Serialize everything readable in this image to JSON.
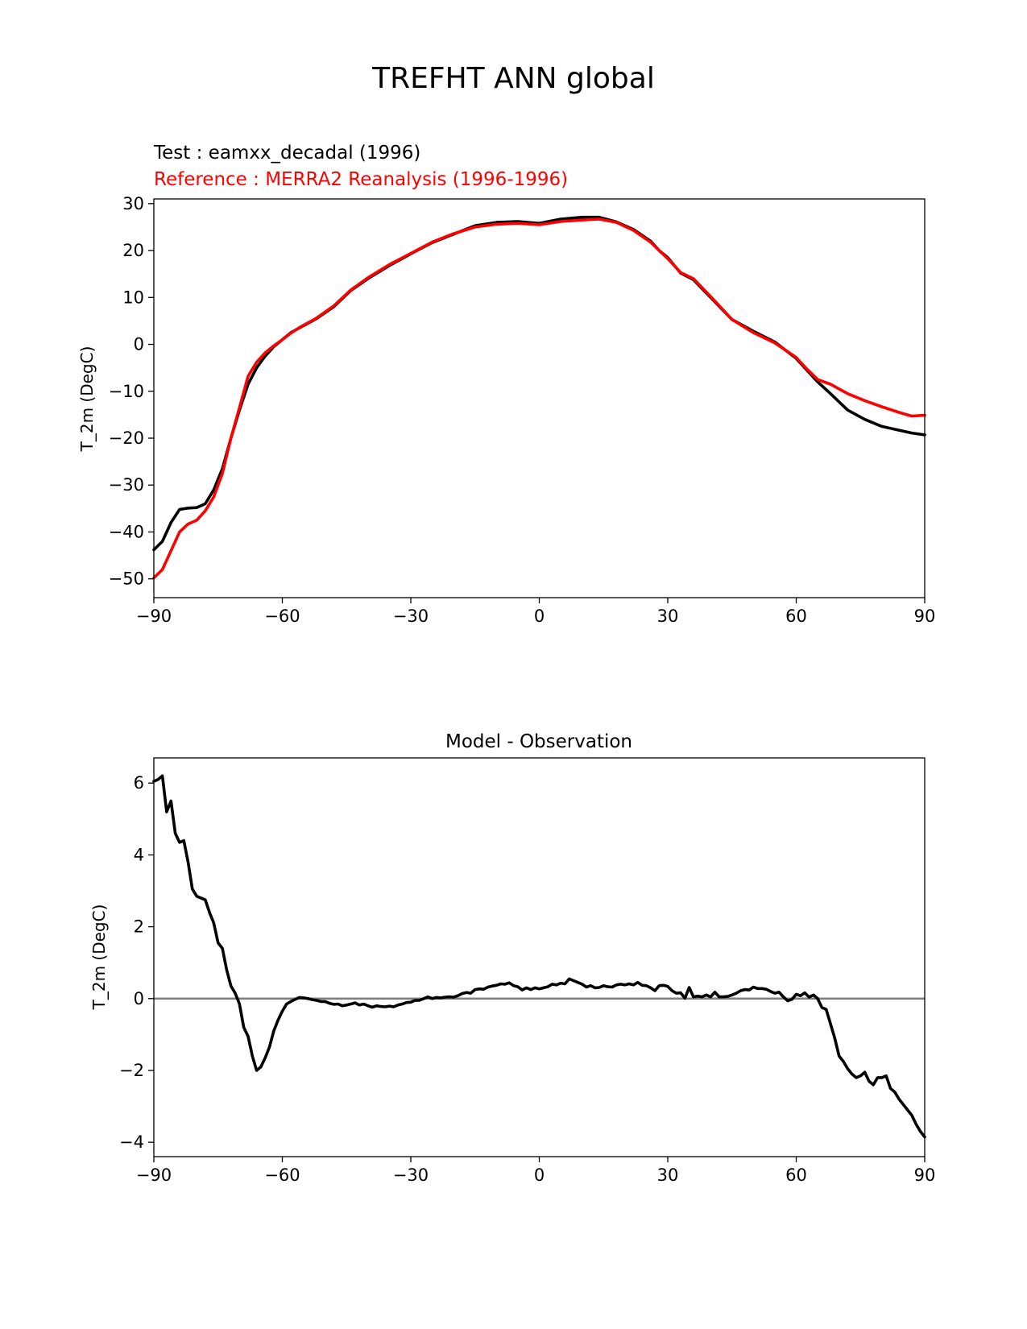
{
  "figure_title": "TREFHT ANN global",
  "chart_data": [
    {
      "type": "line",
      "test_label": "Test : eamxx_decadal (1996)",
      "reference_label": "Reference : MERRA2 Reanalysis (1996-1996)",
      "xlabel": "",
      "ylabel": "T_2m (DegC)",
      "xlim": [
        -90,
        90
      ],
      "ylim": [
        -54,
        31
      ],
      "xticks": [
        -90,
        -60,
        -30,
        0,
        30,
        60,
        90
      ],
      "xtick_labels": [
        "−90",
        "−60",
        "−30",
        "0",
        "30",
        "60",
        "90"
      ],
      "yticks": [
        30,
        20,
        10,
        0,
        -10,
        -20,
        -30,
        -40,
        -50
      ],
      "ytick_labels": [
        "30",
        "20",
        "10",
        "0",
        "−10",
        "−20",
        "−30",
        "−40",
        "−50"
      ],
      "series": [
        {
          "name": "Test",
          "color": "#000000",
          "x": [
            -90,
            -88,
            -86,
            -84,
            -82,
            -80,
            -78,
            -76,
            -74,
            -72,
            -70,
            -68,
            -66,
            -64,
            -62,
            -60,
            -58,
            -56,
            -52,
            -48,
            -44,
            -40,
            -35,
            -30,
            -25,
            -20,
            -15,
            -10,
            -5,
            0,
            5,
            10,
            14,
            18,
            22,
            26,
            28,
            30,
            33,
            36,
            40,
            45,
            50,
            55,
            60,
            62,
            65,
            68,
            72,
            76,
            80,
            84,
            87,
            90
          ],
          "values": [
            -43.8,
            -42,
            -38,
            -35.2,
            -34.9,
            -34.8,
            -34,
            -31,
            -26.5,
            -20,
            -14,
            -8.5,
            -5,
            -2.5,
            -0.5,
            1,
            2.5,
            3.5,
            5.5,
            8,
            11.5,
            14,
            16.8,
            19.3,
            21.7,
            23.5,
            25.3,
            26,
            26.2,
            25.8,
            26.7,
            27.1,
            27.1,
            26.1,
            24.5,
            22,
            20,
            18.5,
            15.2,
            13.8,
            10,
            5.3,
            2.8,
            0.5,
            -3,
            -5,
            -8,
            -10.5,
            -14,
            -16,
            -17.5,
            -18.3,
            -18.9,
            -19.3
          ]
        },
        {
          "name": "Reference",
          "color": "#ff0000",
          "x": [
            -90,
            -88,
            -86,
            -84,
            -82,
            -80,
            -78,
            -76,
            -74,
            -72,
            -70,
            -68,
            -66,
            -64,
            -62,
            -60,
            -58,
            -56,
            -52,
            -48,
            -44,
            -40,
            -35,
            -30,
            -25,
            -20,
            -15,
            -10,
            -5,
            0,
            5,
            10,
            14,
            18,
            22,
            26,
            28,
            30,
            33,
            36,
            40,
            45,
            50,
            55,
            60,
            62,
            65,
            68,
            72,
            76,
            80,
            84,
            87,
            90
          ],
          "values": [
            -49.8,
            -48,
            -44,
            -40,
            -38.3,
            -37.5,
            -35.5,
            -32.5,
            -27.5,
            -20,
            -13.5,
            -6.8,
            -3.8,
            -1.8,
            -0.3,
            1,
            2.4,
            3.6,
            5.6,
            8.2,
            11.6,
            14.2,
            17,
            19.4,
            21.8,
            23.6,
            25,
            25.6,
            25.8,
            25.5,
            26.2,
            26.5,
            26.7,
            26,
            24.3,
            21.8,
            20,
            18.3,
            15.3,
            14,
            10.2,
            5.3,
            2.5,
            0.3,
            -2.8,
            -4.8,
            -7.5,
            -8.5,
            -10.5,
            -12,
            -13.3,
            -14.5,
            -15.3,
            -15.1
          ]
        }
      ]
    },
    {
      "type": "line",
      "title": "Model - Observation",
      "xlabel": "",
      "ylabel": "T_2m (DegC)",
      "xlim": [
        -90,
        90
      ],
      "ylim": [
        -4.4,
        6.7
      ],
      "xticks": [
        -90,
        -60,
        -30,
        0,
        30,
        60,
        90
      ],
      "xtick_labels": [
        "−90",
        "−60",
        "−30",
        "0",
        "30",
        "60",
        "90"
      ],
      "yticks": [
        6,
        4,
        2,
        0,
        -2,
        -4
      ],
      "ytick_labels": [
        "6",
        "4",
        "2",
        "0",
        "−2",
        "−4"
      ],
      "zero_line": 0,
      "series": [
        {
          "name": "Model - Observation",
          "color": "#000000",
          "x": [
            -90,
            -89,
            -88,
            -87,
            -86,
            -85,
            -84,
            -83,
            -82,
            -81,
            -80,
            -79,
            -78,
            -77,
            -76,
            -75,
            -74,
            -73,
            -72,
            -71,
            -70,
            -69,
            -68,
            -67,
            -66,
            -65,
            -64,
            -63,
            -62,
            -61,
            -60,
            -59,
            -58,
            -57,
            -56,
            -55,
            -54,
            -53,
            -52,
            -51,
            -50,
            -49,
            -48,
            -47,
            -46,
            -45,
            -44,
            -43,
            -42,
            -41,
            -40,
            -39,
            -38,
            -37,
            -36,
            -35,
            -34,
            -33,
            -32,
            -31,
            -30,
            -29,
            -28,
            -27,
            -26,
            -25,
            -24,
            -23,
            -22,
            -21,
            -20,
            -19,
            -18,
            -17,
            -16,
            -15,
            -14,
            -13,
            -12,
            -11,
            -10,
            -9,
            -8,
            -7,
            -6,
            -5,
            -4,
            -3,
            -2,
            -1,
            0,
            1,
            2,
            3,
            4,
            5,
            6,
            7,
            8,
            9,
            10,
            11,
            12,
            13,
            14,
            15,
            16,
            17,
            18,
            19,
            20,
            21,
            22,
            23,
            24,
            25,
            26,
            27,
            28,
            29,
            30,
            31,
            32,
            33,
            34,
            35,
            36,
            37,
            38,
            39,
            40,
            41,
            42,
            43,
            44,
            45,
            46,
            47,
            48,
            49,
            50,
            51,
            52,
            53,
            54,
            55,
            56,
            57,
            58,
            59,
            60,
            61,
            62,
            63,
            64,
            65,
            66,
            67,
            68,
            69,
            70,
            71,
            72,
            73,
            74,
            75,
            76,
            77,
            78,
            79,
            80,
            81,
            82,
            83,
            84,
            85,
            86,
            87,
            88,
            89,
            90
          ],
          "values": [
            6.05,
            6.1,
            6.2,
            5.2,
            5.5,
            4.6,
            4.35,
            4.4,
            3.8,
            3.05,
            2.85,
            2.8,
            2.75,
            2.4,
            2.1,
            1.55,
            1.4,
            0.8,
            0.35,
            0.15,
            -0.15,
            -0.8,
            -1.05,
            -1.6,
            -2.0,
            -1.9,
            -1.65,
            -1.35,
            -0.9,
            -0.6,
            -0.35,
            -0.15,
            -0.08,
            -0.02,
            0.03,
            0.02,
            0.0,
            -0.03,
            -0.05,
            -0.08,
            -0.08,
            -0.13,
            -0.16,
            -0.15,
            -0.2,
            -0.18,
            -0.15,
            -0.12,
            -0.18,
            -0.15,
            -0.2,
            -0.24,
            -0.2,
            -0.22,
            -0.23,
            -0.21,
            -0.23,
            -0.18,
            -0.15,
            -0.11,
            -0.1,
            -0.05,
            -0.05,
            0.0,
            0.05,
            0.0,
            0.03,
            0.02,
            0.04,
            0.05,
            0.04,
            0.08,
            0.14,
            0.17,
            0.15,
            0.25,
            0.27,
            0.26,
            0.32,
            0.35,
            0.37,
            0.41,
            0.4,
            0.44,
            0.36,
            0.33,
            0.24,
            0.3,
            0.25,
            0.3,
            0.27,
            0.3,
            0.33,
            0.4,
            0.38,
            0.43,
            0.41,
            0.55,
            0.5,
            0.45,
            0.4,
            0.32,
            0.36,
            0.3,
            0.31,
            0.36,
            0.33,
            0.32,
            0.38,
            0.4,
            0.38,
            0.41,
            0.38,
            0.45,
            0.37,
            0.36,
            0.3,
            0.22,
            0.36,
            0.37,
            0.34,
            0.22,
            0.15,
            0.16,
            0.01,
            0.31,
            0.05,
            0.07,
            0.05,
            0.1,
            0.05,
            0.18,
            0.05,
            0.05,
            0.06,
            0.1,
            0.15,
            0.22,
            0.25,
            0.24,
            0.32,
            0.28,
            0.28,
            0.26,
            0.2,
            0.15,
            0.18,
            0.05,
            -0.06,
            -0.02,
            0.12,
            0.08,
            0.16,
            0.04,
            0.1,
            0.0,
            -0.25,
            -0.3,
            -0.7,
            -1.1,
            -1.6,
            -1.75,
            -1.95,
            -2.1,
            -2.2,
            -2.15,
            -2.05,
            -2.3,
            -2.4,
            -2.2,
            -2.2,
            -2.15,
            -2.5,
            -2.6,
            -2.8,
            -2.95,
            -3.1,
            -3.25,
            -3.5,
            -3.7,
            -3.85
          ]
        }
      ]
    }
  ]
}
